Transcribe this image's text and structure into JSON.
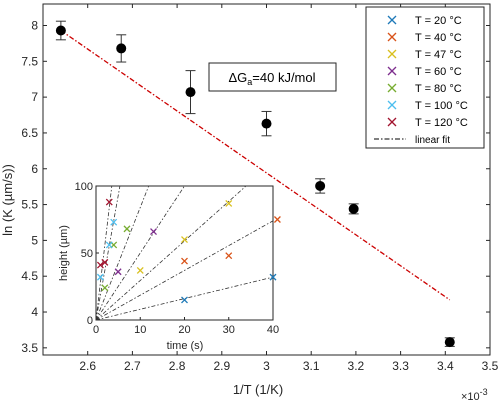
{
  "chart_data": [
    {
      "type": "scatter",
      "xlabel": "1/T (1/K)",
      "ylabel": "ln (K  (µm/s))",
      "x_multiplier_label": "×10",
      "x_multiplier_exp": "-3",
      "xlim": [
        2.5,
        3.5
      ],
      "ylim": [
        3.4,
        8.3
      ],
      "xticks": [
        "2.6",
        "2.7",
        "2.8",
        "2.9",
        "3",
        "3.1",
        "3.2",
        "3.3",
        "3.4",
        "3.5"
      ],
      "yticks": [
        "3.5",
        "4",
        "4.5",
        "5",
        "5.5",
        "6",
        "6.5",
        "7",
        "7.5",
        "8"
      ],
      "annotation_prefix": "ΔG",
      "annotation_sub": "a",
      "annotation_rest": "=40 kJ/mol",
      "points": [
        {
          "x": 2.54,
          "y": 7.93,
          "err": 0.13
        },
        {
          "x": 2.675,
          "y": 7.68,
          "err": 0.19
        },
        {
          "x": 2.83,
          "y": 7.07,
          "err": 0.3
        },
        {
          "x": 3.0,
          "y": 6.63,
          "err": 0.17
        },
        {
          "x": 3.12,
          "y": 5.76,
          "err": 0.1
        },
        {
          "x": 3.195,
          "y": 5.44,
          "err": 0.07
        },
        {
          "x": 3.41,
          "y": 3.58,
          "err": 0.06
        }
      ],
      "fit": {
        "name": "linear fit",
        "x": [
          2.54,
          3.41
        ],
        "y": [
          7.93,
          4.17
        ],
        "color": "#cc0000"
      },
      "legend": {
        "placement": "top-right",
        "entries": [
          {
            "label": "T = 20 °C",
            "color": "#1f7ab8"
          },
          {
            "label": "T = 40 °C",
            "color": "#d95319"
          },
          {
            "label": "T = 47 °C",
            "color": "#d9c01f"
          },
          {
            "label": "T = 60 °C",
            "color": "#7e2f8e"
          },
          {
            "label": "T = 80 °C",
            "color": "#77ac30"
          },
          {
            "label": "T = 100 °C",
            "color": "#4dbeee"
          },
          {
            "label": "T = 120 °C",
            "color": "#a2142f"
          },
          {
            "label": "linear fit",
            "color": "#000000"
          }
        ]
      }
    },
    {
      "type": "scatter",
      "xlabel": "time (s)",
      "ylabel": "height (µm)",
      "xlim": [
        0,
        40
      ],
      "ylim": [
        0,
        100
      ],
      "xticks": [
        "0",
        "10",
        "20",
        "30",
        "40"
      ],
      "yticks": [
        "0",
        "50",
        "100"
      ],
      "series": [
        {
          "color": "#1f7ab8",
          "x": [
            20,
            40
          ],
          "y": [
            15,
            32
          ]
        },
        {
          "color": "#d95319",
          "x": [
            20,
            30,
            41
          ],
          "y": [
            44,
            48,
            75
          ]
        },
        {
          "color": "#d9c01f",
          "x": [
            10,
            20,
            30
          ],
          "y": [
            37,
            60,
            87
          ]
        },
        {
          "color": "#7e2f8e",
          "x": [
            5,
            13
          ],
          "y": [
            36,
            66
          ]
        },
        {
          "color": "#77ac30",
          "x": [
            2,
            4,
            7
          ],
          "y": [
            24,
            56,
            68
          ]
        },
        {
          "color": "#4dbeee",
          "x": [
            1,
            3,
            4
          ],
          "y": [
            32,
            56,
            73
          ]
        },
        {
          "color": "#a2142f",
          "x": [
            1,
            2,
            3
          ],
          "y": [
            41,
            43,
            88
          ]
        }
      ],
      "fit_slopes": [
        0.8,
        1.85,
        2.95,
        5.0,
        8.4,
        18.5,
        28
      ]
    }
  ]
}
